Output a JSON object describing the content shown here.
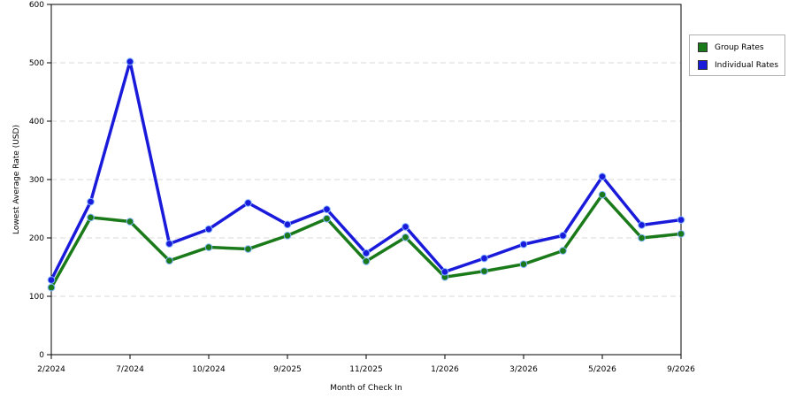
{
  "chart_data": {
    "type": "line",
    "title": "",
    "xlabel": "Month of Check In",
    "ylabel": "Lowest Average Rate (USD)",
    "ylim": [
      0,
      600
    ],
    "yticks": [
      "0",
      "100",
      "200",
      "300",
      "400",
      "500",
      "600"
    ],
    "x_tick_labels": [
      "2/2024",
      "7/2024",
      "10/2024",
      "9/2025",
      "11/2025",
      "1/2026",
      "3/2026",
      "5/2026",
      "9/2026"
    ],
    "grid": "horizontal dashed",
    "legend_position": "right",
    "series": [
      {
        "name": "Group Rates",
        "color": "#1a7a1a",
        "values": [
          115,
          235,
          228,
          161,
          184,
          181,
          204,
          233,
          160,
          201,
          133,
          143,
          155,
          178,
          274,
          200,
          207
        ]
      },
      {
        "name": "Individual Rates",
        "color": "#1a1adb",
        "values": [
          128,
          262,
          502,
          190,
          215,
          260,
          223,
          249,
          174,
          219,
          142,
          165,
          189,
          204,
          305,
          222,
          231
        ]
      }
    ]
  }
}
